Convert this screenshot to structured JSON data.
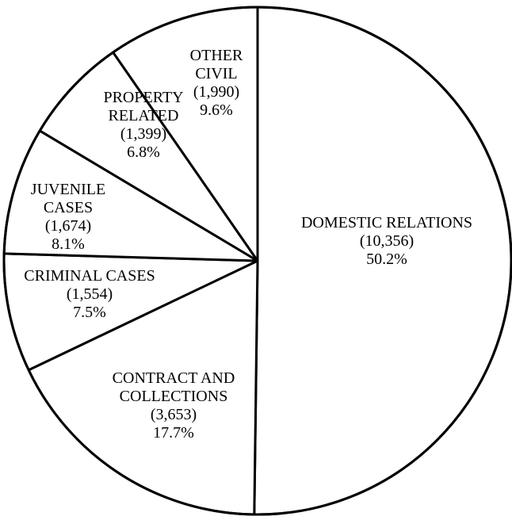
{
  "chart_data": {
    "type": "pie",
    "slices": [
      {
        "lines": [
          "DOMESTIC RELATIONS",
          "(10,356)",
          "50.2%"
        ],
        "count": 10356,
        "percent": 50.2
      },
      {
        "lines": [
          "CONTRACT AND",
          "COLLECTIONS",
          "(3,653)",
          "17.7%"
        ],
        "count": 3653,
        "percent": 17.7
      },
      {
        "lines": [
          "CRIMINAL CASES",
          "(1,554)",
          "7.5%"
        ],
        "count": 1554,
        "percent": 7.5
      },
      {
        "lines": [
          "JUVENILE",
          "CASES",
          "(1,674)",
          "8.1%"
        ],
        "count": 1674,
        "percent": 8.1
      },
      {
        "lines": [
          "PROPERTY",
          "RELATED",
          "(1,399)",
          "6.8%"
        ],
        "count": 1399,
        "percent": 6.8
      },
      {
        "lines": [
          "OTHER",
          "CIVIL",
          "(1,990)",
          "9.6%"
        ],
        "count": 1990,
        "percent": 9.6
      }
    ]
  }
}
